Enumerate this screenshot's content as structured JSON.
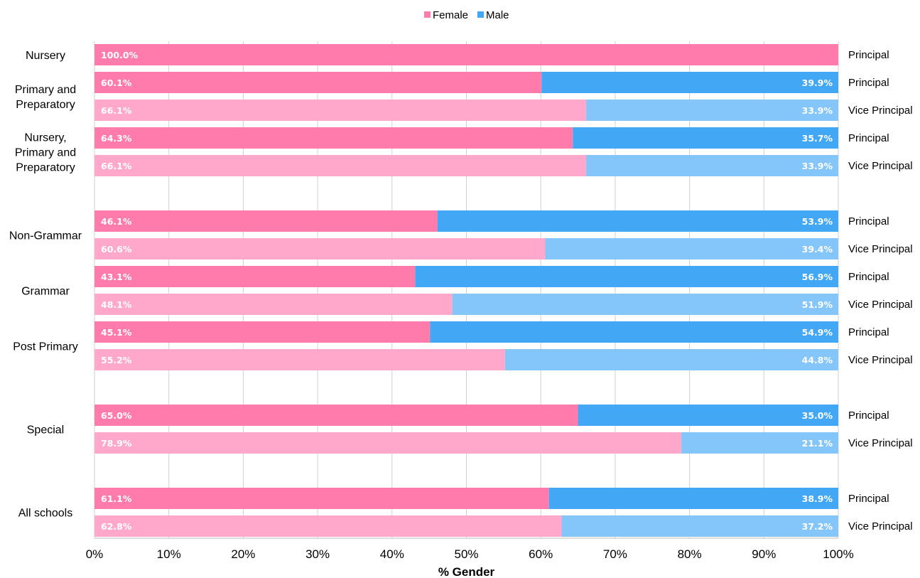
{
  "chart_data": {
    "type": "bar",
    "orientation": "horizontal",
    "stacked": true,
    "xlabel": "% Gender",
    "xlim": [
      0,
      100
    ],
    "xticks": [
      "0%",
      "10%",
      "20%",
      "30%",
      "40%",
      "50%",
      "60%",
      "70%",
      "80%",
      "90%",
      "100%"
    ],
    "grid": true,
    "legend": {
      "position": "top-center",
      "items": [
        {
          "name": "Female",
          "color": "#FF7BAC"
        },
        {
          "name": "Male",
          "color": "#42A8F5"
        }
      ]
    },
    "colors": {
      "female_principal": "#FF7BAC",
      "male_principal": "#42A8F5",
      "female_vice": "#FFA8CB",
      "male_vice": "#85C6FA"
    },
    "groups": [
      {
        "label": [
          "Nursery"
        ],
        "rows": [
          {
            "role": "Principal",
            "female": 100.0,
            "male": 0,
            "female_label": "100.0%",
            "male_label": ""
          }
        ]
      },
      {
        "label": [
          "Primary and",
          "Preparatory"
        ],
        "rows": [
          {
            "role": "Principal",
            "female": 60.1,
            "male": 39.9,
            "female_label": "60.1%",
            "male_label": "39.9%"
          },
          {
            "role": "Vice Principal",
            "female": 66.1,
            "male": 33.9,
            "female_label": "66.1%",
            "male_label": "33.9%"
          }
        ]
      },
      {
        "label": [
          "Nursery,",
          "Primary and",
          "Preparatory"
        ],
        "rows": [
          {
            "role": "Principal",
            "female": 64.3,
            "male": 35.7,
            "female_label": "64.3%",
            "male_label": "35.7%"
          },
          {
            "role": "Vice Principal",
            "female": 66.1,
            "male": 33.9,
            "female_label": "66.1%",
            "male_label": "33.9%"
          }
        ]
      },
      {
        "label": [
          "Non-Grammar"
        ],
        "rows": [
          {
            "role": "Principal",
            "female": 46.1,
            "male": 53.9,
            "female_label": "46.1%",
            "male_label": "53.9%"
          },
          {
            "role": "Vice Principal",
            "female": 60.6,
            "male": 39.4,
            "female_label": "60.6%",
            "male_label": "39.4%"
          }
        ]
      },
      {
        "label": [
          "Grammar"
        ],
        "rows": [
          {
            "role": "Principal",
            "female": 43.1,
            "male": 56.9,
            "female_label": "43.1%",
            "male_label": "56.9%"
          },
          {
            "role": "Vice Principal",
            "female": 48.1,
            "male": 51.9,
            "female_label": "48.1%",
            "male_label": "51.9%"
          }
        ]
      },
      {
        "label": [
          "Post Primary"
        ],
        "rows": [
          {
            "role": "Principal",
            "female": 45.1,
            "male": 54.9,
            "female_label": "45.1%",
            "male_label": "54.9%"
          },
          {
            "role": "Vice Principal",
            "female": 55.2,
            "male": 44.8,
            "female_label": "55.2%",
            "male_label": "44.8%"
          }
        ]
      },
      {
        "label": [
          "Special"
        ],
        "rows": [
          {
            "role": "Principal",
            "female": 65.0,
            "male": 35.0,
            "female_label": "65.0%",
            "male_label": "35.0%"
          },
          {
            "role": "Vice Principal",
            "female": 78.9,
            "male": 21.1,
            "female_label": "78.9%",
            "male_label": "21.1%"
          }
        ]
      },
      {
        "label": [
          "All schools"
        ],
        "rows": [
          {
            "role": "Principal",
            "female": 61.1,
            "male": 38.9,
            "female_label": "61.1%",
            "male_label": "38.9%"
          },
          {
            "role": "Vice Principal",
            "female": 62.8,
            "male": 37.2,
            "female_label": "62.8%",
            "male_label": "37.2%"
          }
        ]
      }
    ]
  }
}
